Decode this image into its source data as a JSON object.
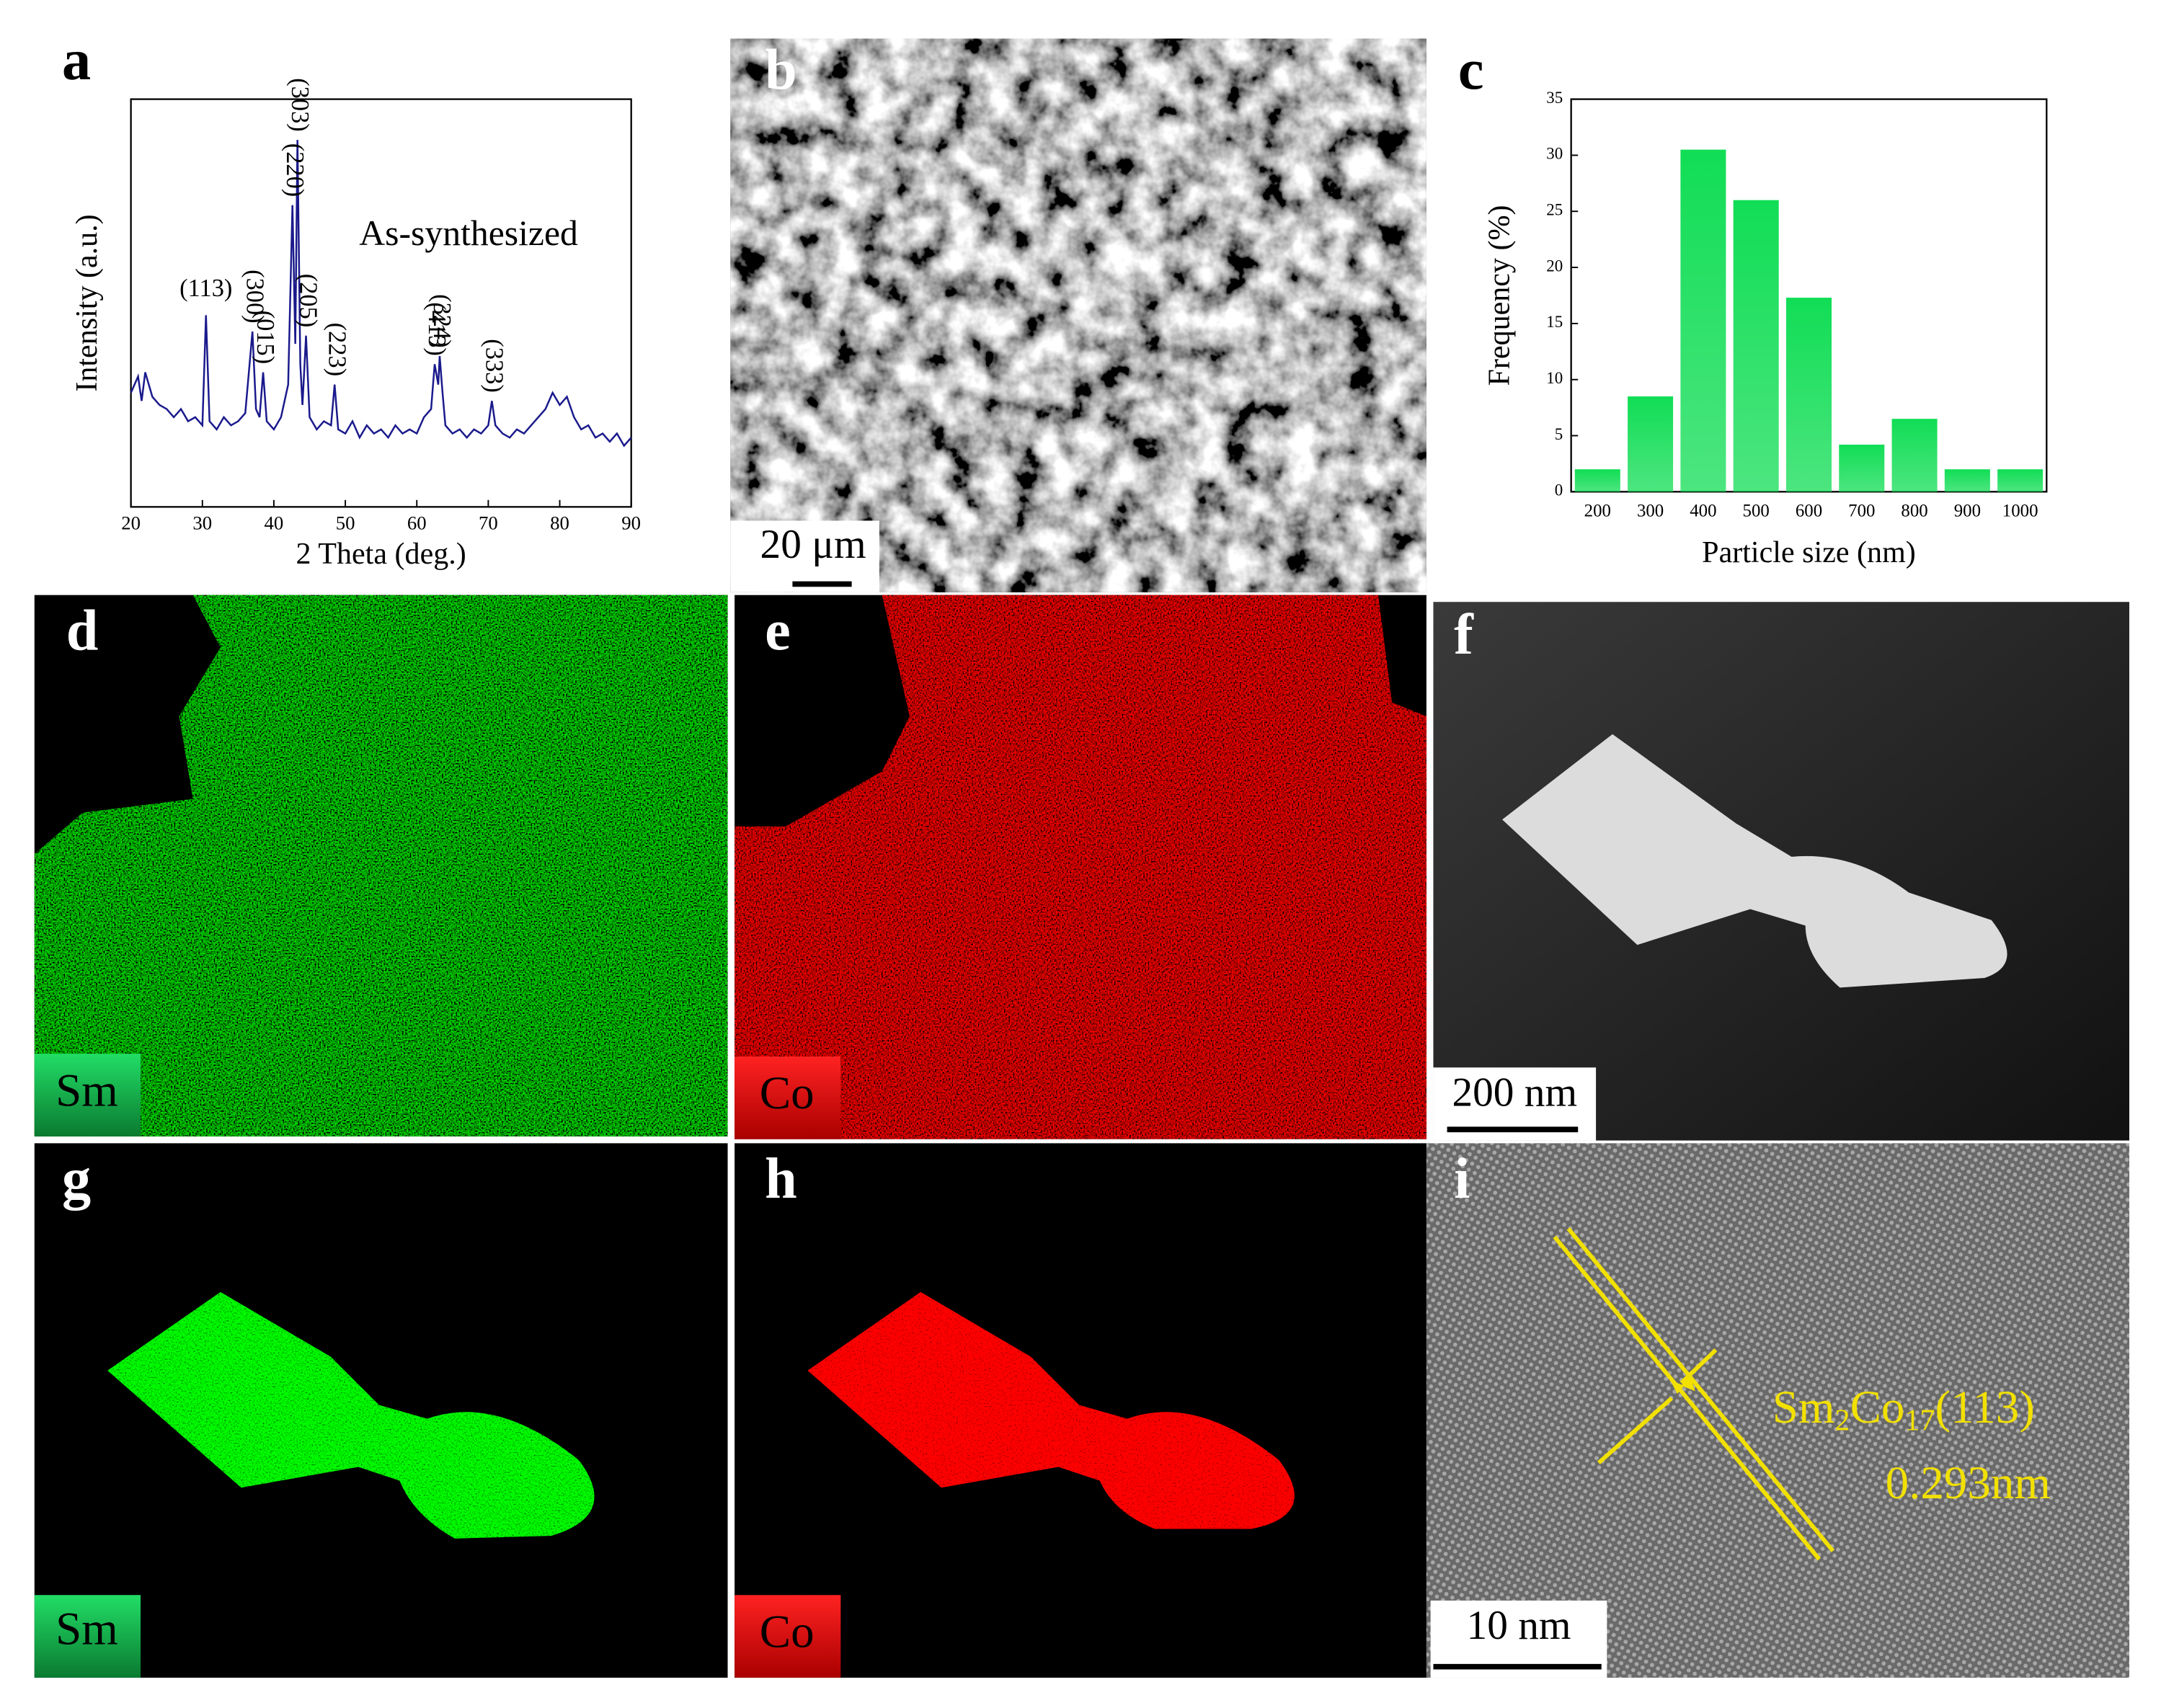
{
  "chart_data": [
    {
      "type": "line",
      "xlabel": "2 Theta (deg.)",
      "ylabel": "Intensity (a.u.)",
      "label": "As-synthesized",
      "color": "#1a1a8c",
      "x": [
        20,
        21,
        21.5,
        22,
        23,
        24,
        25,
        26,
        27,
        28,
        29,
        30,
        30.5,
        31,
        32,
        33,
        34,
        35,
        36,
        37,
        37.5,
        38,
        38.5,
        39,
        40,
        41,
        42,
        42.6,
        43,
        43.3,
        43.7,
        44,
        44.5,
        45,
        46,
        47,
        48,
        48.5,
        49,
        50,
        51,
        52,
        53,
        54,
        55,
        56,
        57,
        58,
        59,
        60,
        61,
        62,
        62.5,
        63,
        63.2,
        63.6,
        64,
        65,
        66,
        67,
        68,
        69,
        70,
        70.5,
        71,
        72,
        73,
        74,
        75,
        76,
        77,
        78,
        79,
        80,
        81,
        82,
        83,
        84,
        85,
        86,
        87,
        88,
        89,
        90
      ],
      "values": [
        28,
        32,
        26,
        33,
        27,
        25,
        24,
        22,
        24,
        21,
        22,
        20,
        47,
        21,
        19,
        22,
        20,
        21,
        23,
        43,
        24,
        22,
        33,
        21,
        19,
        22,
        30,
        74,
        40,
        90,
        35,
        25,
        42,
        22,
        19,
        21,
        20,
        30,
        19,
        18,
        21,
        17,
        20,
        18,
        19,
        17,
        20,
        18,
        19,
        18,
        22,
        24,
        35,
        30,
        37,
        28,
        20,
        18,
        19,
        17,
        19,
        18,
        20,
        26,
        20,
        18,
        17,
        19,
        18,
        20,
        22,
        24,
        28,
        25,
        27,
        22,
        19,
        20,
        17,
        18,
        16,
        18,
        15,
        17
      ],
      "annotations": [
        {
          "text": "(113)",
          "x": 30.5
        },
        {
          "text": "(300)",
          "x": 37
        },
        {
          "text": "(015)",
          "x": 38.5
        },
        {
          "text": "(220)",
          "x": 42.6
        },
        {
          "text": "(303)",
          "x": 43.3
        },
        {
          "text": "(205)",
          "x": 44.5
        },
        {
          "text": "(223)",
          "x": 48.5
        },
        {
          "text": "(413)",
          "x": 62.5
        },
        {
          "text": "(324)",
          "x": 63.2
        },
        {
          "text": "(333)",
          "x": 70.5
        }
      ],
      "xlim": [
        20,
        90
      ],
      "xticks": [
        20,
        30,
        40,
        50,
        60,
        70,
        80,
        90
      ],
      "ylim": [
        0,
        100
      ]
    },
    {
      "type": "bar",
      "xlabel": "Particle size (nm)",
      "ylabel": "Frequency (%)",
      "color": "#11dd55",
      "categories": [
        "200",
        "300",
        "400",
        "500",
        "600",
        "700",
        "800",
        "900",
        "1000"
      ],
      "values": [
        2,
        8.5,
        30.5,
        26,
        17.3,
        4.2,
        6.5,
        2,
        2
      ],
      "ylim": [
        0,
        35
      ],
      "yticks": [
        0,
        5,
        10,
        15,
        20,
        25,
        30,
        35
      ]
    }
  ],
  "panels": {
    "letters": [
      "a",
      "b",
      "c",
      "d",
      "e",
      "f",
      "g",
      "h",
      "i"
    ],
    "sem_scale": "20 μm",
    "tem_scale": "200 nm",
    "hrtem_scale": "10 nm",
    "element_sm": "Sm",
    "element_co": "Co",
    "formula": [
      "Sm",
      "2",
      "Co",
      "17",
      "(113)"
    ],
    "spacing": "0.293nm"
  }
}
